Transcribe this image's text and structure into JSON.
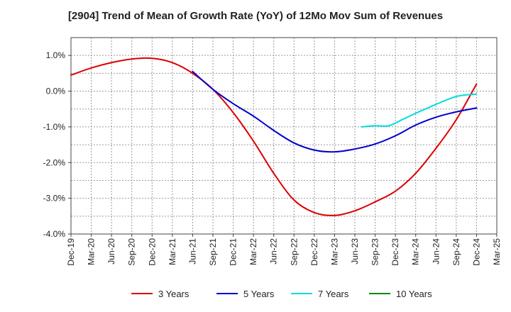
{
  "chart_data": {
    "type": "line",
    "title": "[2904]  Trend of Mean of Growth Rate (YoY) of 12Mo Mov Sum of Revenues",
    "xlabel": "",
    "ylabel": "",
    "ylim": [
      -4.0,
      1.5
    ],
    "y_ticks": [
      1.0,
      0.0,
      -1.0,
      -2.0,
      -3.0,
      -4.0
    ],
    "y_tick_labels": [
      "1.0%",
      "0.0%",
      "-1.0%",
      "-2.0%",
      "-3.0%",
      "-4.0%"
    ],
    "x_ticks": [
      "Dec-19",
      "Mar-20",
      "Jun-20",
      "Sep-20",
      "Dec-20",
      "Mar-21",
      "Jun-21",
      "Sep-21",
      "Dec-21",
      "Mar-22",
      "Jun-22",
      "Sep-22",
      "Dec-22",
      "Mar-23",
      "Jun-23",
      "Sep-23",
      "Dec-23",
      "Mar-24",
      "Jun-24",
      "Sep-24",
      "Dec-24",
      "Mar-25"
    ],
    "grid": true,
    "legend_position": "bottom",
    "series": [
      {
        "name": "3 Years",
        "color": "#dd0000",
        "points": [
          [
            0,
            0.45
          ],
          [
            1,
            0.65
          ],
          [
            2,
            0.8
          ],
          [
            3,
            0.9
          ],
          [
            4,
            0.92
          ],
          [
            5,
            0.8
          ],
          [
            6,
            0.5
          ],
          [
            7,
            0.05
          ],
          [
            8,
            -0.6
          ],
          [
            9,
            -1.4
          ],
          [
            10,
            -2.3
          ],
          [
            11,
            -3.05
          ],
          [
            12,
            -3.4
          ],
          [
            13,
            -3.48
          ],
          [
            14,
            -3.35
          ],
          [
            15,
            -3.1
          ],
          [
            16,
            -2.8
          ],
          [
            17,
            -2.3
          ],
          [
            18,
            -1.6
          ],
          [
            19,
            -0.8
          ],
          [
            20,
            0.2
          ]
        ]
      },
      {
        "name": "5 Years",
        "color": "#0000cc",
        "points": [
          [
            6,
            0.55
          ],
          [
            7,
            0.05
          ],
          [
            8,
            -0.35
          ],
          [
            9,
            -0.7
          ],
          [
            10,
            -1.1
          ],
          [
            11,
            -1.45
          ],
          [
            12,
            -1.65
          ],
          [
            13,
            -1.7
          ],
          [
            14,
            -1.62
          ],
          [
            15,
            -1.48
          ],
          [
            16,
            -1.25
          ],
          [
            17,
            -0.95
          ],
          [
            18,
            -0.73
          ],
          [
            19,
            -0.58
          ],
          [
            20,
            -0.47
          ]
        ]
      },
      {
        "name": "7 Years",
        "color": "#00dddd",
        "points": [
          [
            14.33,
            -1.0
          ],
          [
            15,
            -0.97
          ],
          [
            15.67,
            -0.97
          ],
          [
            16.33,
            -0.8
          ],
          [
            17,
            -0.62
          ],
          [
            18,
            -0.37
          ],
          [
            19,
            -0.15
          ],
          [
            20,
            -0.08
          ]
        ]
      },
      {
        "name": "10 Years",
        "color": "#008800",
        "points": []
      }
    ]
  }
}
